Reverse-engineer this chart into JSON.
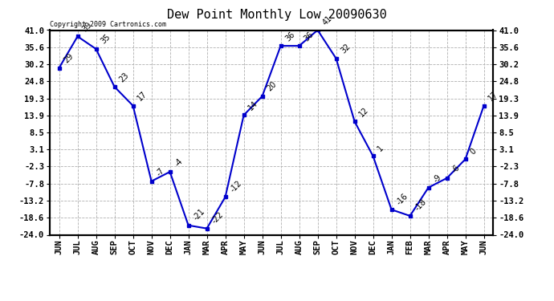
{
  "title": "Dew Point Monthly Low 20090630",
  "copyright": "Copyright 2009 Cartronics.com",
  "x_labels": [
    "JUN",
    "JUL",
    "AUG",
    "SEP",
    "OCT",
    "NOV",
    "DEC",
    "JAN",
    "MAR",
    "APR",
    "MAY",
    "JUN",
    "JUL",
    "AUG",
    "SEP",
    "OCT",
    "NOV",
    "DEC",
    "JAN",
    "FEB",
    "MAR",
    "APR",
    "MAY",
    "JUN"
  ],
  "y_values": [
    29,
    39,
    35,
    23,
    17,
    -7,
    -4,
    -21,
    -22,
    -12,
    14,
    20,
    36,
    36,
    41,
    32,
    12,
    1,
    -16,
    -18,
    -9,
    -6,
    0,
    17
  ],
  "line_color": "#0000cc",
  "marker_color": "#0000cc",
  "bg_color": "#ffffff",
  "grid_color": "#b0b0b0",
  "y_ticks": [
    41.0,
    35.6,
    30.2,
    24.8,
    19.3,
    13.9,
    8.5,
    3.1,
    -2.3,
    -7.8,
    -13.2,
    -18.6,
    -24.0
  ],
  "ylim": [
    -24.0,
    41.0
  ],
  "title_fontsize": 11,
  "label_fontsize": 7.5,
  "annotation_fontsize": 7,
  "copyright_fontsize": 6
}
